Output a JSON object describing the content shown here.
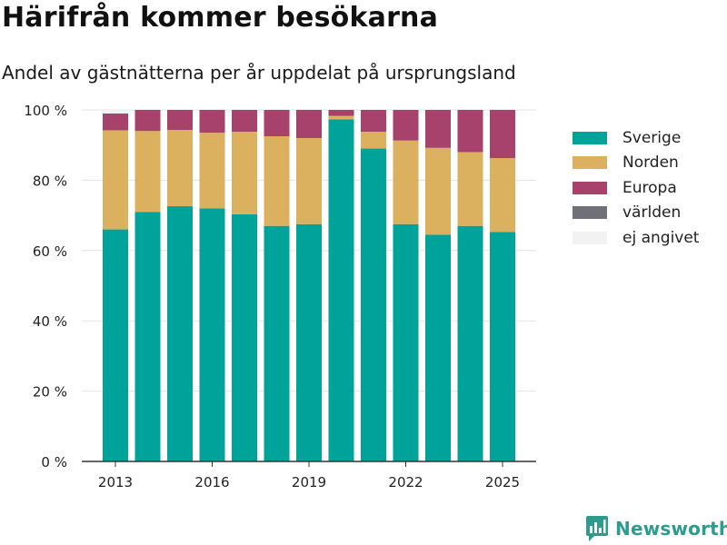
{
  "header": {
    "title": "Härifrån kommer besökarna",
    "subtitle": "Andel av gästnätterna per år uppdelat på ursprungsland"
  },
  "brand": {
    "name": "Newsworthy",
    "icon": "newsworthy-logo-icon",
    "color": "#2d9b8e"
  },
  "legend": {
    "items": [
      {
        "label": "Sverige",
        "color": "#00a39a"
      },
      {
        "label": "Norden",
        "color": "#dbb05e"
      },
      {
        "label": "Europa",
        "color": "#a6426b"
      },
      {
        "label": "världen",
        "color": "#707079"
      },
      {
        "label": "ej angivet",
        "color": "#f2f2f2"
      }
    ]
  },
  "chart_data": {
    "type": "bar",
    "stacked": true,
    "title": "Härifrån kommer besökarna",
    "subtitle": "Andel av gästnätterna per år uppdelat på ursprungsland",
    "categories": [
      "2013",
      "2014",
      "2015",
      "2016",
      "2017",
      "2018",
      "2019",
      "2020",
      "2021",
      "2022",
      "2023",
      "2024",
      "2025"
    ],
    "x_tick_labels": [
      "2013",
      "2016",
      "2019",
      "2022",
      "2025"
    ],
    "y_tick_labels": [
      "0 %",
      "20 %",
      "40 %",
      "60 %",
      "80 %",
      "100 %"
    ],
    "ylim": [
      0,
      100
    ],
    "y_unit": "%",
    "grid": true,
    "legend_position": "right",
    "series": [
      {
        "name": "Sverige",
        "color": "#00a39a",
        "values": [
          66.0,
          71.0,
          72.6,
          72.0,
          70.3,
          67.0,
          67.5,
          97.3,
          89.0,
          67.5,
          64.5,
          67.0,
          65.3
        ]
      },
      {
        "name": "Norden",
        "color": "#dbb05e",
        "values": [
          28.2,
          23.0,
          21.7,
          21.5,
          23.5,
          25.5,
          24.5,
          1.0,
          4.8,
          23.8,
          24.7,
          21.0,
          21.0
        ]
      },
      {
        "name": "Europa",
        "color": "#a6426b",
        "values": [
          4.8,
          6.0,
          5.7,
          6.5,
          6.2,
          7.5,
          8.0,
          1.7,
          6.2,
          8.7,
          10.8,
          12.0,
          13.7
        ]
      },
      {
        "name": "världen",
        "color": "#707079",
        "values": [
          0,
          0,
          0,
          0,
          0,
          0,
          0,
          0,
          0,
          0,
          0,
          0,
          0
        ]
      },
      {
        "name": "ej angivet",
        "color": "#f2f2f2",
        "values": [
          1.0,
          0,
          0,
          0,
          0,
          0,
          0,
          0,
          0,
          0,
          0,
          0,
          0
        ]
      }
    ]
  }
}
